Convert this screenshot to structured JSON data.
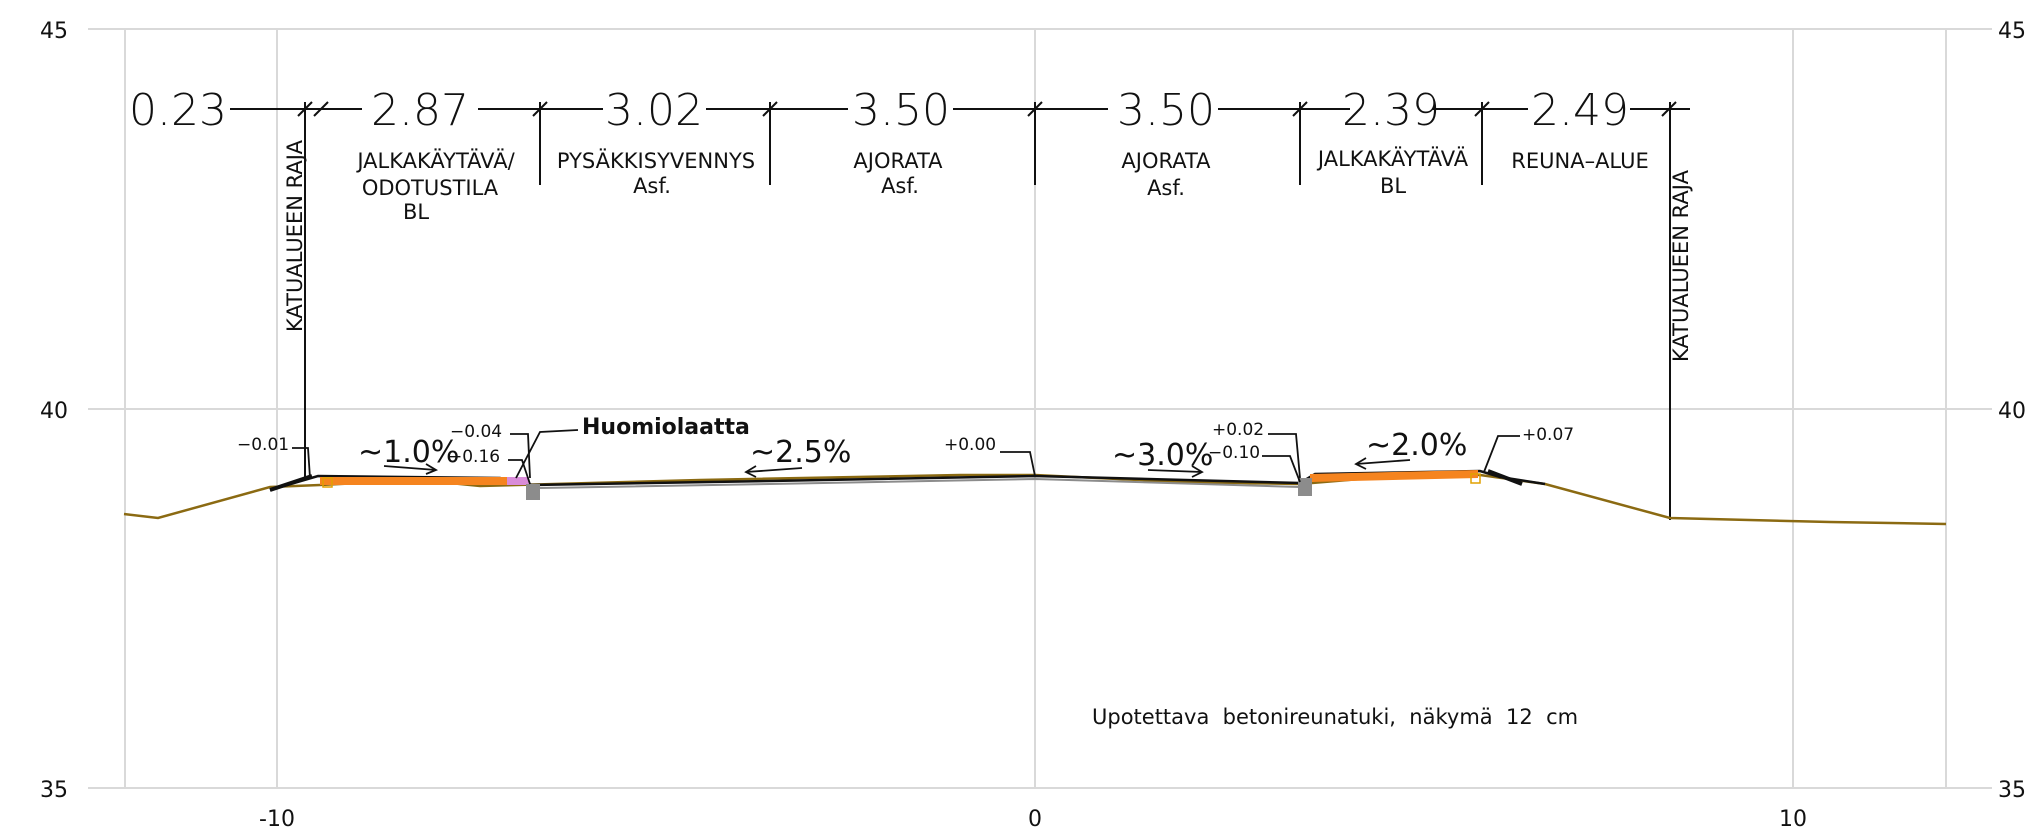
{
  "axes": {
    "y_left": [
      "45",
      "40",
      "35"
    ],
    "y_right": [
      "45",
      "40",
      "35"
    ],
    "x": [
      "-10",
      "0",
      "10"
    ]
  },
  "dimensions": [
    "0.23",
    "2.87",
    "3.02",
    "3.50",
    "3.50",
    "2.39",
    "2.49"
  ],
  "lanes": {
    "sidewalk_left": [
      "JALKAKÄYTÄVÄ/",
      "ODOTUSTILA",
      "BL"
    ],
    "bus_bay": [
      "PYSÄKKISYVENNYS",
      "Asf."
    ],
    "road_left": [
      "AJORATA",
      "Asf."
    ],
    "road_right": [
      "AJORATA",
      "Asf."
    ],
    "sidewalk_right": [
      "JALKAKÄYTÄVÄ",
      "BL"
    ],
    "edge_area": [
      "REUNA–ALUE"
    ]
  },
  "boundary_left": "KATUALUEEN RAJA",
  "boundary_right": "KATUALUEEN RAJA",
  "elevations": {
    "e1": "−0.01",
    "e2": "−0.04",
    "e3": "−0.16",
    "e4": "+0.00",
    "e5": "+0.02",
    "e6": "−0.10",
    "e7": "+0.07"
  },
  "slopes": {
    "s1": "~1.0%",
    "s2": "~2.5%",
    "s3": "~3.0%",
    "s4": "~2.0%"
  },
  "callout": "Huomiolaatta",
  "note": "Upotettava  betonireunatuki,  näkymä  12  cm",
  "colors": {
    "grid": "#d9d9d9",
    "terrain": "#8b6a12",
    "surface_orange": "#f5841f",
    "tactile_pink": "#d98cd9",
    "curb_grey": "#8c8c8c",
    "ink": "#111111"
  }
}
